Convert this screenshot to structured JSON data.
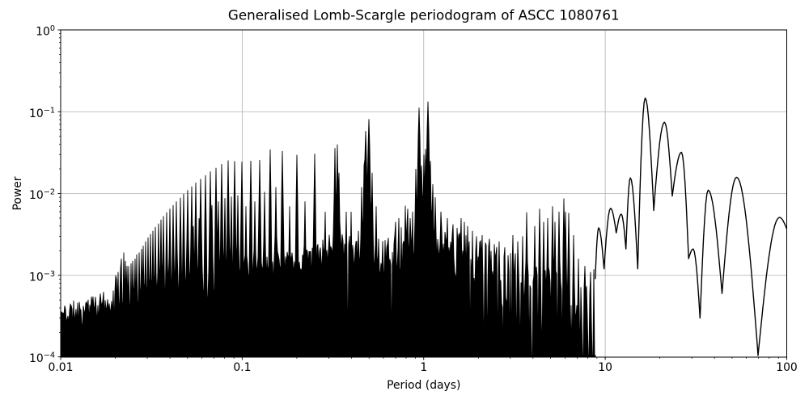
{
  "chart_data": {
    "type": "line",
    "title": "Generalised Lomb-Scargle periodogram of ASCC 1080761",
    "xlabel": "Period (days)",
    "ylabel": "Power",
    "xscale": "log",
    "yscale": "log",
    "xlim": [
      0.01,
      100
    ],
    "ylim": [
      0.0001,
      1
    ],
    "grid": true,
    "legend": false,
    "line_color": "#000000",
    "grid_color": "#b0b0b0",
    "background_color": "#ffffff",
    "x_ticks": {
      "values": [
        0.01,
        0.1,
        1,
        10,
        100
      ],
      "labels": [
        "0.01",
        "0.1",
        "1",
        "10",
        "100"
      ]
    },
    "y_ticks": {
      "values": [
        1,
        0.1,
        0.01,
        0.001,
        0.0001
      ],
      "exponents": [
        "0",
        "−1",
        "−2",
        "−3",
        "−4"
      ],
      "base": "10"
    },
    "render_seed": 11,
    "alias_comb_peaks": [
      [
        0.02,
        0.001
      ],
      [
        0.0204,
        0.0009
      ],
      [
        0.0208,
        0.0011
      ],
      [
        0.0213,
        0.0012
      ],
      [
        0.0217,
        0.0016
      ],
      [
        0.0222,
        0.0019
      ],
      [
        0.0227,
        0.0015
      ],
      [
        0.0233,
        0.0013
      ],
      [
        0.0238,
        0.0013
      ],
      [
        0.0244,
        0.0014
      ],
      [
        0.025,
        0.0015
      ],
      [
        0.0256,
        0.0016
      ],
      [
        0.0263,
        0.0018
      ],
      [
        0.027,
        0.0019
      ],
      [
        0.0278,
        0.0021
      ],
      [
        0.0286,
        0.0023
      ],
      [
        0.0294,
        0.0026
      ],
      [
        0.0303,
        0.0029
      ],
      [
        0.0313,
        0.0032
      ],
      [
        0.0323,
        0.0035
      ],
      [
        0.0333,
        0.0039
      ],
      [
        0.0345,
        0.0043
      ],
      [
        0.0357,
        0.0048
      ],
      [
        0.037,
        0.0053
      ],
      [
        0.0385,
        0.0059
      ],
      [
        0.04,
        0.0065
      ],
      [
        0.0417,
        0.0072
      ],
      [
        0.0435,
        0.008
      ],
      [
        0.0455,
        0.0089
      ],
      [
        0.0476,
        0.0099
      ],
      [
        0.05,
        0.011
      ],
      [
        0.0526,
        0.0122
      ],
      [
        0.0556,
        0.0136
      ],
      [
        0.0588,
        0.0151
      ],
      [
        0.0625,
        0.0167
      ],
      [
        0.0667,
        0.0186
      ],
      [
        0.0714,
        0.0206
      ],
      [
        0.0769,
        0.0229
      ],
      [
        0.0833,
        0.0254
      ],
      [
        0.0909,
        0.0249
      ],
      [
        0.1,
        0.0245
      ],
      [
        0.1111,
        0.0251
      ],
      [
        0.125,
        0.0257
      ],
      [
        0.1429,
        0.0345
      ],
      [
        0.1667,
        0.0331
      ],
      [
        0.2,
        0.0297
      ],
      [
        0.25,
        0.0306
      ],
      [
        0.3333,
        0.0399
      ],
      [
        0.5,
        0.0813
      ],
      [
        0.054,
        0.004
      ],
      [
        0.058,
        0.005
      ],
      [
        0.063,
        0.006
      ],
      [
        0.068,
        0.0072
      ],
      [
        0.074,
        0.008
      ],
      [
        0.08,
        0.0088
      ],
      [
        0.087,
        0.0092
      ],
      [
        0.095,
        0.0095
      ],
      [
        0.1053,
        0.007
      ],
      [
        0.1176,
        0.008
      ],
      [
        0.1333,
        0.0105
      ],
      [
        0.1538,
        0.012
      ],
      [
        0.1818,
        0.007
      ],
      [
        0.2222,
        0.008
      ],
      [
        0.2857,
        0.006
      ],
      [
        0.4,
        0.006
      ],
      [
        0.325,
        0.036
      ],
      [
        0.343,
        0.018
      ],
      [
        0.376,
        0.006
      ],
      [
        0.457,
        0.012
      ],
      [
        0.47,
        0.022
      ],
      [
        0.477,
        0.058
      ],
      [
        0.52,
        0.018
      ],
      [
        0.545,
        0.007
      ],
      [
        0.7,
        0.0045
      ],
      [
        0.73,
        0.005
      ],
      [
        0.79,
        0.0071
      ],
      [
        0.815,
        0.0065
      ],
      [
        0.845,
        0.005
      ],
      [
        0.87,
        0.006
      ],
      [
        0.905,
        0.02
      ],
      [
        0.94,
        0.112
      ],
      [
        0.975,
        0.022
      ],
      [
        1.0,
        0.03
      ],
      [
        1.02,
        0.035
      ],
      [
        1.06,
        0.133
      ],
      [
        1.09,
        0.025
      ],
      [
        1.12,
        0.013
      ],
      [
        1.16,
        0.009
      ],
      [
        1.25,
        0.006
      ],
      [
        1.35,
        0.005
      ],
      [
        1.45,
        0.0042
      ],
      [
        1.52,
        0.0038
      ],
      [
        1.6,
        0.005
      ],
      [
        1.68,
        0.0045
      ],
      [
        1.75,
        0.004
      ],
      [
        1.85,
        0.0035
      ],
      [
        1.95,
        0.003
      ],
      [
        2.1,
        0.0031
      ],
      [
        2.3,
        0.0028
      ],
      [
        2.45,
        0.0024
      ],
      [
        2.6,
        0.0026
      ],
      [
        2.8,
        0.0022
      ],
      [
        3.1,
        0.0031
      ],
      [
        3.3,
        0.0026
      ],
      [
        3.5,
        0.003
      ],
      [
        3.7,
        0.0059
      ],
      [
        4.1,
        0.004
      ],
      [
        4.35,
        0.0065
      ],
      [
        4.6,
        0.0045
      ],
      [
        4.8,
        0.005
      ],
      [
        5.1,
        0.007
      ],
      [
        5.3,
        0.0045
      ],
      [
        5.55,
        0.006
      ],
      [
        5.9,
        0.0087
      ],
      [
        6.05,
        0.006
      ],
      [
        6.3,
        0.0058
      ],
      [
        6.7,
        0.0031
      ],
      [
        7.1,
        0.0016
      ],
      [
        7.7,
        0.0013
      ],
      [
        8.3,
        0.0011
      ]
    ],
    "noise_envelope": [
      [
        0.01,
        0.0002,
        0.00045,
        0
      ],
      [
        0.016,
        0.00022,
        0.0006,
        0
      ],
      [
        0.025,
        0.00028,
        0.0008,
        0
      ],
      [
        0.04,
        0.00035,
        0.0011,
        0
      ],
      [
        0.07,
        0.00055,
        0.0013,
        0
      ],
      [
        0.1,
        0.0007,
        0.0015,
        0
      ],
      [
        0.15,
        0.00075,
        0.002,
        0
      ],
      [
        0.25,
        0.00085,
        0.0026,
        0
      ],
      [
        0.33,
        0.0009,
        0.0035,
        0
      ],
      [
        0.42,
        0.0009,
        0.003,
        0.02
      ],
      [
        0.5,
        0.001,
        0.006,
        0.05
      ],
      [
        0.6,
        0.0008,
        0.0026,
        0.08
      ],
      [
        0.8,
        0.0009,
        0.0045,
        0.08
      ],
      [
        0.88,
        0.001,
        0.003,
        0.08
      ],
      [
        0.97,
        0.0015,
        0.013,
        0.05
      ],
      [
        1.05,
        0.0012,
        0.009,
        0.06
      ],
      [
        1.2,
        0.0008,
        0.004,
        0.12
      ],
      [
        1.6,
        0.0007,
        0.0035,
        0.15
      ],
      [
        2.2,
        0.0005,
        0.0026,
        0.2
      ],
      [
        3.0,
        0.00035,
        0.002,
        0.28
      ],
      [
        4.0,
        0.00025,
        0.0016,
        0.35
      ],
      [
        5.0,
        0.0002,
        0.0012,
        0.42
      ],
      [
        6.0,
        0.00016,
        0.001,
        0.5
      ],
      [
        7.0,
        0.00014,
        0.0007,
        0.55
      ],
      [
        8.0,
        0.00013,
        0.0009,
        0.5
      ],
      [
        8.8,
        0.00012,
        0.0015,
        0.4
      ]
    ],
    "smooth_lobes": [
      [
        8.8,
        0.0009
      ],
      [
        9.2,
        0.0038
      ],
      [
        9.85,
        0.0012
      ],
      [
        10.7,
        0.0066
      ],
      [
        11.5,
        0.0033
      ],
      [
        12.25,
        0.0056
      ],
      [
        13.0,
        0.0021
      ],
      [
        13.75,
        0.0155
      ],
      [
        15.1,
        0.0012
      ],
      [
        16.6,
        0.147
      ],
      [
        18.5,
        0.0062
      ],
      [
        21.2,
        0.0745
      ],
      [
        23.4,
        0.0093
      ],
      [
        26.3,
        0.032
      ],
      [
        28.8,
        0.0016
      ],
      [
        30.5,
        0.0021
      ],
      [
        33.3,
        0.0003
      ],
      [
        36.9,
        0.011
      ],
      [
        44.0,
        0.0006
      ],
      [
        52.9,
        0.0158
      ],
      [
        69.5,
        0.000105
      ],
      [
        91.2,
        0.0051
      ],
      [
        100.0,
        0.0037
      ]
    ]
  }
}
